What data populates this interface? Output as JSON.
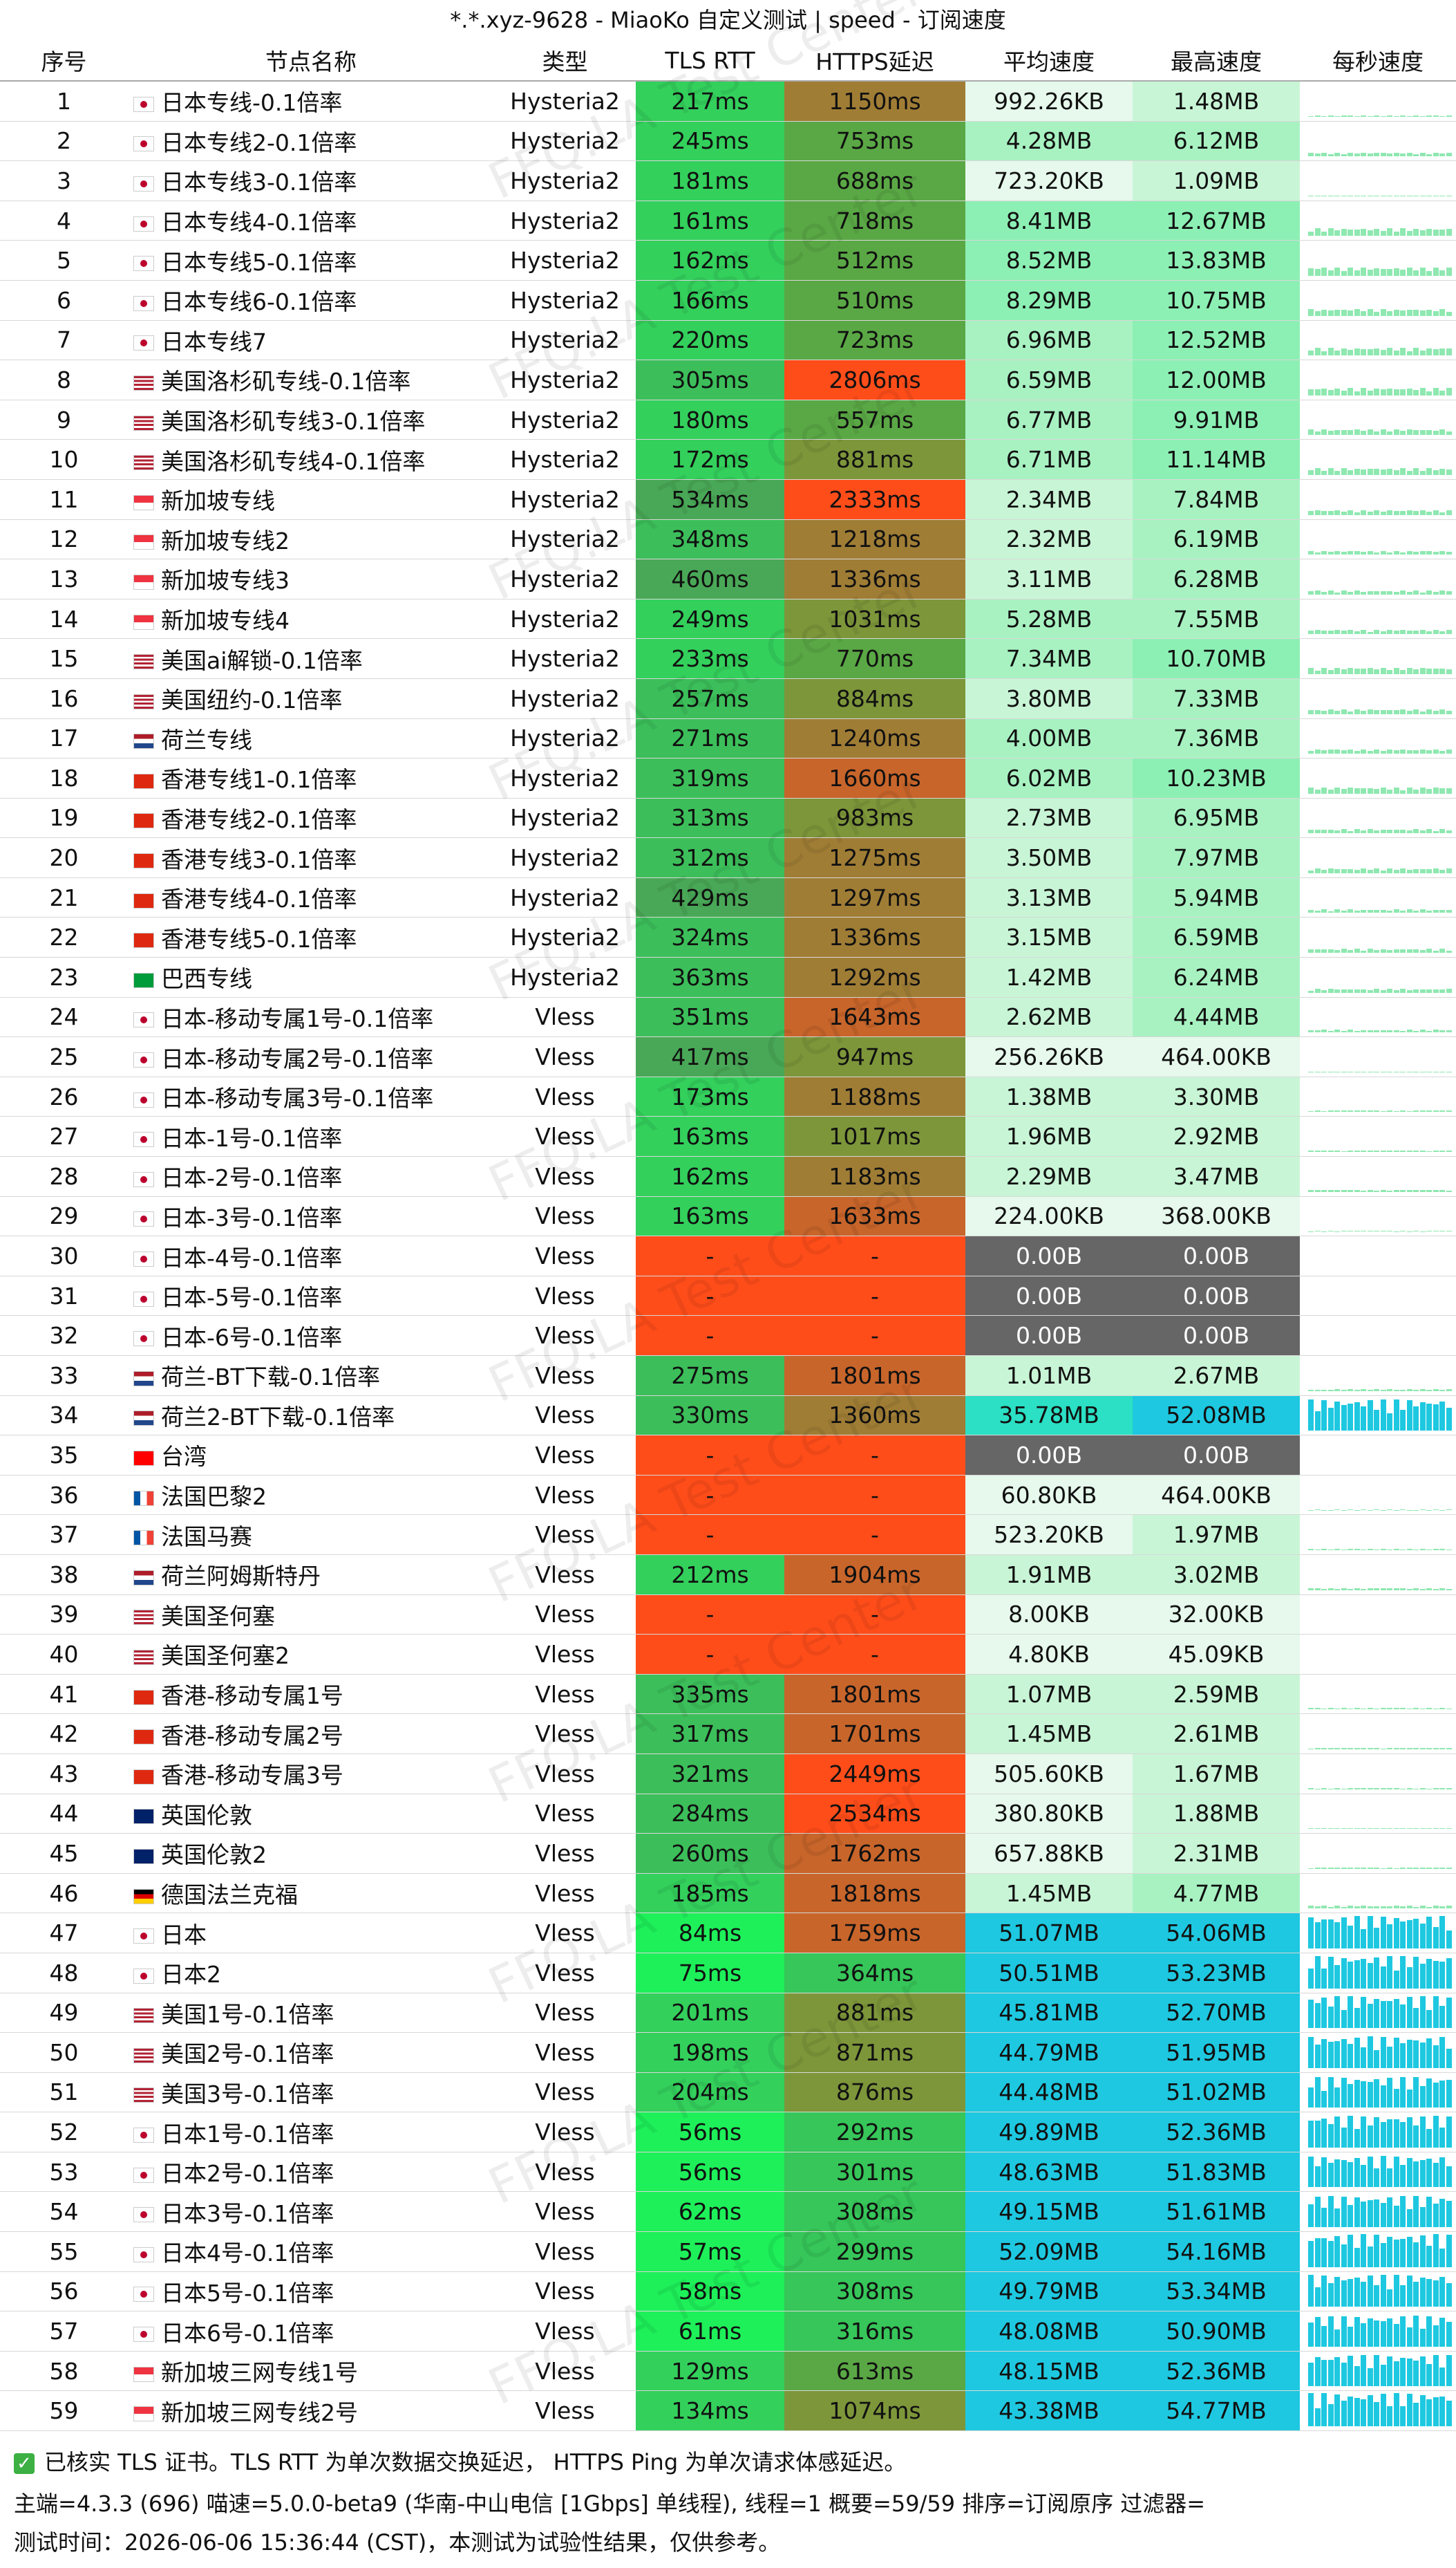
{
  "window": {
    "title": "*.*.xyz-9628 - MiaoKo 自定义测试 | speed - 订阅速度"
  },
  "columns": [
    "序号",
    "节点名称",
    "类型",
    "TLS RTT",
    "HTTPS延迟",
    "平均速度",
    "最高速度",
    "每秒速度"
  ],
  "rows": [
    {
      "idx": "1",
      "flag": "jp",
      "name": "日本专线-0.1倍率",
      "type": "Hysteria2",
      "tls": "217ms",
      "https": "1150ms",
      "avg": "992.26KB",
      "max": "1.48MB"
    },
    {
      "idx": "2",
      "flag": "jp",
      "name": "日本专线2-0.1倍率",
      "type": "Hysteria2",
      "tls": "245ms",
      "https": "753ms",
      "avg": "4.28MB",
      "max": "6.12MB"
    },
    {
      "idx": "3",
      "flag": "jp",
      "name": "日本专线3-0.1倍率",
      "type": "Hysteria2",
      "tls": "181ms",
      "https": "688ms",
      "avg": "723.20KB",
      "max": "1.09MB"
    },
    {
      "idx": "4",
      "flag": "jp",
      "name": "日本专线4-0.1倍率",
      "type": "Hysteria2",
      "tls": "161ms",
      "https": "718ms",
      "avg": "8.41MB",
      "max": "12.67MB"
    },
    {
      "idx": "5",
      "flag": "jp",
      "name": "日本专线5-0.1倍率",
      "type": "Hysteria2",
      "tls": "162ms",
      "https": "512ms",
      "avg": "8.52MB",
      "max": "13.83MB"
    },
    {
      "idx": "6",
      "flag": "jp",
      "name": "日本专线6-0.1倍率",
      "type": "Hysteria2",
      "tls": "166ms",
      "https": "510ms",
      "avg": "8.29MB",
      "max": "10.75MB"
    },
    {
      "idx": "7",
      "flag": "jp",
      "name": "日本专线7",
      "type": "Hysteria2",
      "tls": "220ms",
      "https": "723ms",
      "avg": "6.96MB",
      "max": "12.52MB"
    },
    {
      "idx": "8",
      "flag": "us",
      "name": "美国洛杉矶专线-0.1倍率",
      "type": "Hysteria2",
      "tls": "305ms",
      "https": "2806ms",
      "avg": "6.59MB",
      "max": "12.00MB"
    },
    {
      "idx": "9",
      "flag": "us",
      "name": "美国洛杉矶专线3-0.1倍率",
      "type": "Hysteria2",
      "tls": "180ms",
      "https": "557ms",
      "avg": "6.77MB",
      "max": "9.91MB"
    },
    {
      "idx": "10",
      "flag": "us",
      "name": "美国洛杉矶专线4-0.1倍率",
      "type": "Hysteria2",
      "tls": "172ms",
      "https": "881ms",
      "avg": "6.71MB",
      "max": "11.14MB"
    },
    {
      "idx": "11",
      "flag": "sg",
      "name": "新加坡专线",
      "type": "Hysteria2",
      "tls": "534ms",
      "https": "2333ms",
      "avg": "2.34MB",
      "max": "7.84MB"
    },
    {
      "idx": "12",
      "flag": "sg",
      "name": "新加坡专线2",
      "type": "Hysteria2",
      "tls": "348ms",
      "https": "1218ms",
      "avg": "2.32MB",
      "max": "6.19MB"
    },
    {
      "idx": "13",
      "flag": "sg",
      "name": "新加坡专线3",
      "type": "Hysteria2",
      "tls": "460ms",
      "https": "1336ms",
      "avg": "3.11MB",
      "max": "6.28MB"
    },
    {
      "idx": "14",
      "flag": "sg",
      "name": "新加坡专线4",
      "type": "Hysteria2",
      "tls": "249ms",
      "https": "1031ms",
      "avg": "5.28MB",
      "max": "7.55MB"
    },
    {
      "idx": "15",
      "flag": "us",
      "name": "美国ai解锁-0.1倍率",
      "type": "Hysteria2",
      "tls": "233ms",
      "https": "770ms",
      "avg": "7.34MB",
      "max": "10.70MB"
    },
    {
      "idx": "16",
      "flag": "us",
      "name": "美国纽约-0.1倍率",
      "type": "Hysteria2",
      "tls": "257ms",
      "https": "884ms",
      "avg": "3.80MB",
      "max": "7.33MB"
    },
    {
      "idx": "17",
      "flag": "nl",
      "name": "荷兰专线",
      "type": "Hysteria2",
      "tls": "271ms",
      "https": "1240ms",
      "avg": "4.00MB",
      "max": "7.36MB"
    },
    {
      "idx": "18",
      "flag": "hk",
      "name": "香港专线1-0.1倍率",
      "type": "Hysteria2",
      "tls": "319ms",
      "https": "1660ms",
      "avg": "6.02MB",
      "max": "10.23MB"
    },
    {
      "idx": "19",
      "flag": "hk",
      "name": "香港专线2-0.1倍率",
      "type": "Hysteria2",
      "tls": "313ms",
      "https": "983ms",
      "avg": "2.73MB",
      "max": "6.95MB"
    },
    {
      "idx": "20",
      "flag": "hk",
      "name": "香港专线3-0.1倍率",
      "type": "Hysteria2",
      "tls": "312ms",
      "https": "1275ms",
      "avg": "3.50MB",
      "max": "7.97MB"
    },
    {
      "idx": "21",
      "flag": "hk",
      "name": "香港专线4-0.1倍率",
      "type": "Hysteria2",
      "tls": "429ms",
      "https": "1297ms",
      "avg": "3.13MB",
      "max": "5.94MB"
    },
    {
      "idx": "22",
      "flag": "hk",
      "name": "香港专线5-0.1倍率",
      "type": "Hysteria2",
      "tls": "324ms",
      "https": "1336ms",
      "avg": "3.15MB",
      "max": "6.59MB"
    },
    {
      "idx": "23",
      "flag": "br",
      "name": "巴西专线",
      "type": "Hysteria2",
      "tls": "363ms",
      "https": "1292ms",
      "avg": "1.42MB",
      "max": "6.24MB"
    },
    {
      "idx": "24",
      "flag": "jp",
      "name": "日本-移动专属1号-0.1倍率",
      "type": "Vless",
      "tls": "351ms",
      "https": "1643ms",
      "avg": "2.62MB",
      "max": "4.44MB"
    },
    {
      "idx": "25",
      "flag": "jp",
      "name": "日本-移动专属2号-0.1倍率",
      "type": "Vless",
      "tls": "417ms",
      "https": "947ms",
      "avg": "256.26KB",
      "max": "464.00KB"
    },
    {
      "idx": "26",
      "flag": "jp",
      "name": "日本-移动专属3号-0.1倍率",
      "type": "Vless",
      "tls": "173ms",
      "https": "1188ms",
      "avg": "1.38MB",
      "max": "3.30MB"
    },
    {
      "idx": "27",
      "flag": "jp",
      "name": "日本-1号-0.1倍率",
      "type": "Vless",
      "tls": "163ms",
      "https": "1017ms",
      "avg": "1.96MB",
      "max": "2.92MB"
    },
    {
      "idx": "28",
      "flag": "jp",
      "name": "日本-2号-0.1倍率",
      "type": "Vless",
      "tls": "162ms",
      "https": "1183ms",
      "avg": "2.29MB",
      "max": "3.47MB"
    },
    {
      "idx": "29",
      "flag": "jp",
      "name": "日本-3号-0.1倍率",
      "type": "Vless",
      "tls": "163ms",
      "https": "1633ms",
      "avg": "224.00KB",
      "max": "368.00KB"
    },
    {
      "idx": "30",
      "flag": "jp",
      "name": "日本-4号-0.1倍率",
      "type": "Vless",
      "tls": "-",
      "https": "-",
      "avg": "0.00B",
      "max": "0.00B"
    },
    {
      "idx": "31",
      "flag": "jp",
      "name": "日本-5号-0.1倍率",
      "type": "Vless",
      "tls": "-",
      "https": "-",
      "avg": "0.00B",
      "max": "0.00B"
    },
    {
      "idx": "32",
      "flag": "jp",
      "name": "日本-6号-0.1倍率",
      "type": "Vless",
      "tls": "-",
      "https": "-",
      "avg": "0.00B",
      "max": "0.00B"
    },
    {
      "idx": "33",
      "flag": "nl",
      "name": "荷兰-BT下载-0.1倍率",
      "type": "Vless",
      "tls": "275ms",
      "https": "1801ms",
      "avg": "1.01MB",
      "max": "2.67MB"
    },
    {
      "idx": "34",
      "flag": "nl",
      "name": "荷兰2-BT下载-0.1倍率",
      "type": "Vless",
      "tls": "330ms",
      "https": "1360ms",
      "avg": "35.78MB",
      "max": "52.08MB"
    },
    {
      "idx": "35",
      "flag": "tw",
      "name": "台湾",
      "type": "Vless",
      "tls": "-",
      "https": "-",
      "avg": "0.00B",
      "max": "0.00B"
    },
    {
      "idx": "36",
      "flag": "fr",
      "name": "法国巴黎2",
      "type": "Vless",
      "tls": "-",
      "https": "-",
      "avg": "60.80KB",
      "max": "464.00KB"
    },
    {
      "idx": "37",
      "flag": "fr",
      "name": "法国马赛",
      "type": "Vless",
      "tls": "-",
      "https": "-",
      "avg": "523.20KB",
      "max": "1.97MB"
    },
    {
      "idx": "38",
      "flag": "nl",
      "name": "荷兰阿姆斯特丹",
      "type": "Vless",
      "tls": "212ms",
      "https": "1904ms",
      "avg": "1.91MB",
      "max": "3.02MB"
    },
    {
      "idx": "39",
      "flag": "us",
      "name": "美国圣何塞",
      "type": "Vless",
      "tls": "-",
      "https": "-",
      "avg": "8.00KB",
      "max": "32.00KB"
    },
    {
      "idx": "40",
      "flag": "us",
      "name": "美国圣何塞2",
      "type": "Vless",
      "tls": "-",
      "https": "-",
      "avg": "4.80KB",
      "max": "45.09KB"
    },
    {
      "idx": "41",
      "flag": "hk",
      "name": "香港-移动专属1号",
      "type": "Vless",
      "tls": "335ms",
      "https": "1801ms",
      "avg": "1.07MB",
      "max": "2.59MB"
    },
    {
      "idx": "42",
      "flag": "hk",
      "name": "香港-移动专属2号",
      "type": "Vless",
      "tls": "317ms",
      "https": "1701ms",
      "avg": "1.45MB",
      "max": "2.61MB"
    },
    {
      "idx": "43",
      "flag": "hk",
      "name": "香港-移动专属3号",
      "type": "Vless",
      "tls": "321ms",
      "https": "2449ms",
      "avg": "505.60KB",
      "max": "1.67MB"
    },
    {
      "idx": "44",
      "flag": "gb",
      "name": "英国伦敦",
      "type": "Vless",
      "tls": "284ms",
      "https": "2534ms",
      "avg": "380.80KB",
      "max": "1.88MB"
    },
    {
      "idx": "45",
      "flag": "gb",
      "name": "英国伦敦2",
      "type": "Vless",
      "tls": "260ms",
      "https": "1762ms",
      "avg": "657.88KB",
      "max": "2.31MB"
    },
    {
      "idx": "46",
      "flag": "de",
      "name": "德国法兰克福",
      "type": "Vless",
      "tls": "185ms",
      "https": "1818ms",
      "avg": "1.45MB",
      "max": "4.77MB"
    },
    {
      "idx": "47",
      "flag": "jp",
      "name": "日本",
      "type": "Vless",
      "tls": "84ms",
      "https": "1759ms",
      "avg": "51.07MB",
      "max": "54.06MB"
    },
    {
      "idx": "48",
      "flag": "jp",
      "name": "日本2",
      "type": "Vless",
      "tls": "75ms",
      "https": "364ms",
      "avg": "50.51MB",
      "max": "53.23MB"
    },
    {
      "idx": "49",
      "flag": "us",
      "name": "美国1号-0.1倍率",
      "type": "Vless",
      "tls": "201ms",
      "https": "881ms",
      "avg": "45.81MB",
      "max": "52.70MB"
    },
    {
      "idx": "50",
      "flag": "us",
      "name": "美国2号-0.1倍率",
      "type": "Vless",
      "tls": "198ms",
      "https": "871ms",
      "avg": "44.79MB",
      "max": "51.95MB"
    },
    {
      "idx": "51",
      "flag": "us",
      "name": "美国3号-0.1倍率",
      "type": "Vless",
      "tls": "204ms",
      "https": "876ms",
      "avg": "44.48MB",
      "max": "51.02MB"
    },
    {
      "idx": "52",
      "flag": "jp",
      "name": "日本1号-0.1倍率",
      "type": "Vless",
      "tls": "56ms",
      "https": "292ms",
      "avg": "49.89MB",
      "max": "52.36MB"
    },
    {
      "idx": "53",
      "flag": "jp",
      "name": "日本2号-0.1倍率",
      "type": "Vless",
      "tls": "56ms",
      "https": "301ms",
      "avg": "48.63MB",
      "max": "51.83MB"
    },
    {
      "idx": "54",
      "flag": "jp",
      "name": "日本3号-0.1倍率",
      "type": "Vless",
      "tls": "62ms",
      "https": "308ms",
      "avg": "49.15MB",
      "max": "51.61MB"
    },
    {
      "idx": "55",
      "flag": "jp",
      "name": "日本4号-0.1倍率",
      "type": "Vless",
      "tls": "57ms",
      "https": "299ms",
      "avg": "52.09MB",
      "max": "54.16MB"
    },
    {
      "idx": "56",
      "flag": "jp",
      "name": "日本5号-0.1倍率",
      "type": "Vless",
      "tls": "58ms",
      "https": "308ms",
      "avg": "49.79MB",
      "max": "53.34MB"
    },
    {
      "idx": "57",
      "flag": "jp",
      "name": "日本6号-0.1倍率",
      "type": "Vless",
      "tls": "61ms",
      "https": "316ms",
      "avg": "48.08MB",
      "max": "50.90MB"
    },
    {
      "idx": "58",
      "flag": "sg",
      "name": "新加坡三网专线1号",
      "type": "Vless",
      "tls": "129ms",
      "https": "613ms",
      "avg": "48.15MB",
      "max": "52.36MB"
    },
    {
      "idx": "59",
      "flag": "sg",
      "name": "新加坡三网专线2号",
      "type": "Vless",
      "tls": "134ms",
      "https": "1074ms",
      "avg": "43.38MB",
      "max": "54.77MB"
    }
  ],
  "footer": {
    "line1": "已核实 TLS 证书。TLS RTT 为单次数据交换延迟， HTTPS Ping 为单次请求体感延迟。",
    "line2": "主端=4.3.3 (696) 喵速=5.0.0-beta9 (华南-中山电信 [1Gbps] 单线程), 线程=1 概要=59/59 排序=订阅原序 过滤器=",
    "line3": "测试时间：2026-06-06 15:36:44 (CST)，本测试为试验性结果，仅供参考。"
  },
  "watermark": "FFQ.LA Test Center",
  "colors": {
    "fail_red": "#ff4d1a",
    "fast_green": "#22e35a",
    "slow_orange": "#c8702a",
    "gray": "#666666",
    "cyan": "#1ec8e0"
  }
}
